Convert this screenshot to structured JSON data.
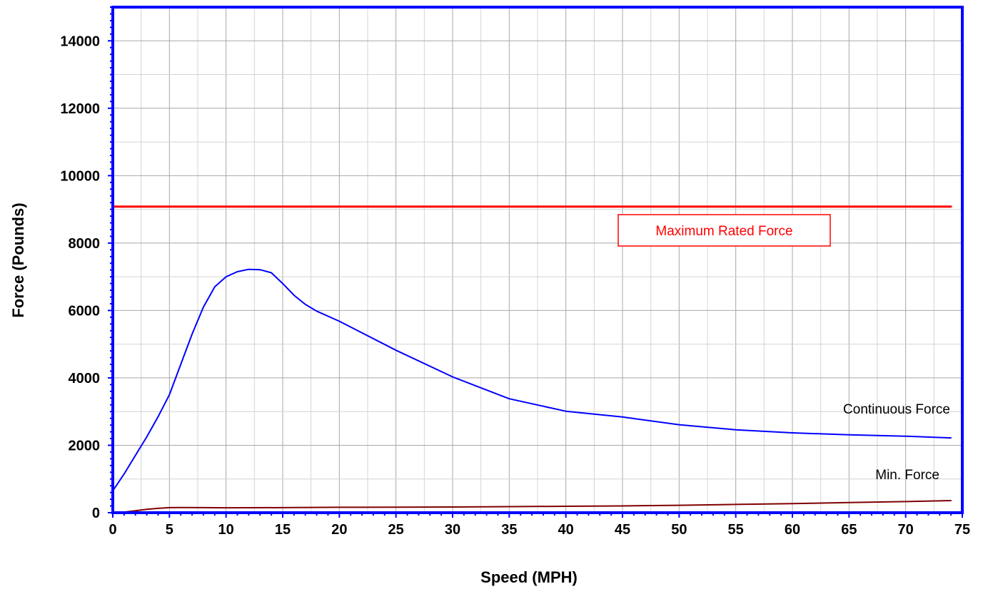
{
  "chart_data": {
    "type": "line",
    "title": "",
    "xlabel": "Speed  (MPH)",
    "ylabel": "Force  (Pounds)",
    "xlim": [
      0,
      75
    ],
    "ylim": [
      0,
      15000
    ],
    "x_ticks": [
      0,
      5,
      10,
      15,
      20,
      25,
      30,
      35,
      40,
      45,
      50,
      55,
      60,
      65,
      70,
      75
    ],
    "y_ticks": [
      0,
      2000,
      4000,
      6000,
      8000,
      10000,
      12000,
      14000
    ],
    "x_grid_step": 2.5,
    "y_grid_step": 1000,
    "grid": true,
    "frame_color": "#0000ff",
    "series": [
      {
        "name": "Maximum Rated Force",
        "color": "#ff0000",
        "x": [
          0,
          74
        ],
        "y": [
          9080,
          9080
        ]
      },
      {
        "name": "Continuous Force",
        "color": "#0000ff",
        "x": [
          0,
          1,
          2,
          3,
          4,
          5,
          6,
          7,
          8,
          9,
          10,
          11,
          12,
          13,
          14,
          15,
          16,
          17,
          18,
          20,
          25,
          30,
          35,
          40,
          45,
          50,
          55,
          60,
          65,
          70,
          74
        ],
        "y": [
          650,
          1150,
          1700,
          2250,
          2850,
          3500,
          4400,
          5300,
          6100,
          6700,
          7000,
          7150,
          7220,
          7210,
          7120,
          6800,
          6450,
          6180,
          5980,
          5680,
          4820,
          4030,
          3380,
          3010,
          2840,
          2610,
          2460,
          2370,
          2310,
          2270,
          2220
        ]
      },
      {
        "name": "Min. Force",
        "color": "#800000",
        "x": [
          0,
          1,
          2,
          3,
          4,
          5,
          6,
          8,
          10,
          15,
          20,
          25,
          30,
          35,
          40,
          45,
          50,
          55,
          60,
          65,
          70,
          74
        ],
        "y": [
          0,
          20,
          60,
          100,
          130,
          150,
          155,
          150,
          145,
          150,
          160,
          165,
          170,
          180,
          190,
          200,
          220,
          245,
          270,
          300,
          330,
          360
        ]
      }
    ],
    "annotations": [
      {
        "id": "max",
        "text": "Maximum Rated Force",
        "color": "#ff0000",
        "boxed": true
      },
      {
        "id": "cont",
        "text": "Continuous Force",
        "color": "#000000",
        "boxed": false
      },
      {
        "id": "min",
        "text": "Min. Force",
        "color": "#000000",
        "boxed": false
      }
    ]
  }
}
